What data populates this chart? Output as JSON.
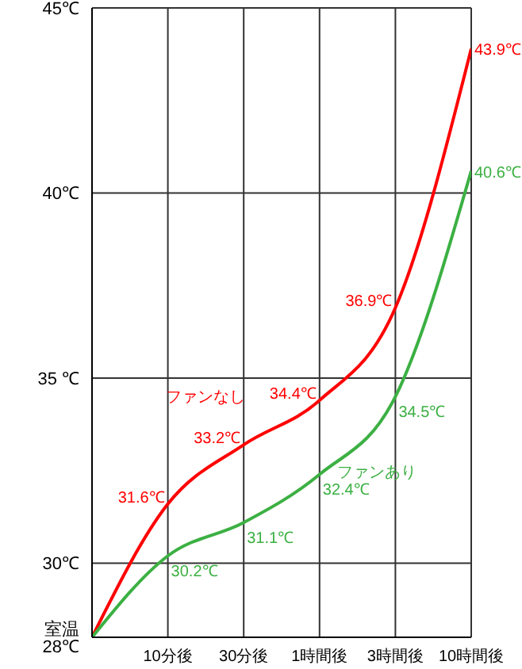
{
  "chart_data": {
    "type": "line",
    "categories": [
      null,
      "10分後",
      "30分後",
      "1時間後",
      "3時間後",
      "10時間後"
    ],
    "series": [
      {
        "name": "ファンなし",
        "color": "#ff0000",
        "values": [
          28,
          31.6,
          33.2,
          34.4,
          36.9,
          43.9
        ],
        "value_labels": [
          null,
          "31.6℃",
          "33.2℃",
          "34.4℃",
          "36.9℃",
          "43.9℃"
        ]
      },
      {
        "name": "ファンあり",
        "color": "#3cb043",
        "values": [
          28,
          30.2,
          31.1,
          32.4,
          34.5,
          40.6
        ],
        "value_labels": [
          null,
          "30.2℃",
          "31.1℃",
          "32.4℃",
          "34.5℃",
          "40.6℃"
        ]
      }
    ],
    "ylim": [
      28,
      45
    ],
    "yticks": [
      {
        "value": 28,
        "label": "室温 28℃"
      },
      {
        "value": 30,
        "label": "30℃"
      },
      {
        "value": 35,
        "label": "35 ℃"
      },
      {
        "value": 40,
        "label": "40℃"
      },
      {
        "value": 45,
        "label": "45℃"
      }
    ],
    "grid": true,
    "legend": false,
    "marker": "none",
    "line_style": "solid"
  }
}
